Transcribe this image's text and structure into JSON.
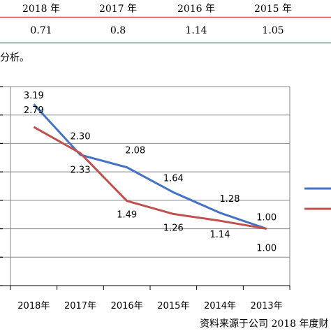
{
  "table": {
    "headers": [
      "2018 年",
      "2017 年",
      "2016 年",
      "2015 年"
    ],
    "values": [
      "0.71",
      "0.8",
      "1.14",
      "1.05"
    ]
  },
  "caption": "分析。",
  "source_note": "资料来源于公司 2018 年度财",
  "colors": {
    "series_1": "#4472c4",
    "series_2": "#c0504d",
    "table_rule": "#c00000"
  },
  "chart_data": {
    "type": "line",
    "categories": [
      "2018年",
      "2017年",
      "2016年",
      "2015年",
      "2014年",
      "2013年"
    ],
    "series": [
      {
        "values": [
          3.19,
          2.3,
          2.08,
          1.64,
          1.28,
          1.0
        ],
        "labels": [
          "3.19",
          "2.30",
          "2.08",
          "1.64",
          "1.28",
          "1.00"
        ]
      },
      {
        "values": [
          2.79,
          2.33,
          1.49,
          1.26,
          1.14,
          1.0
        ],
        "labels": [
          "2.79",
          "2.33",
          "1.49",
          "1.26",
          "1.14",
          "1.00"
        ]
      }
    ],
    "ylim": [
      0,
      3.5
    ],
    "grid": true,
    "legend": "right"
  }
}
